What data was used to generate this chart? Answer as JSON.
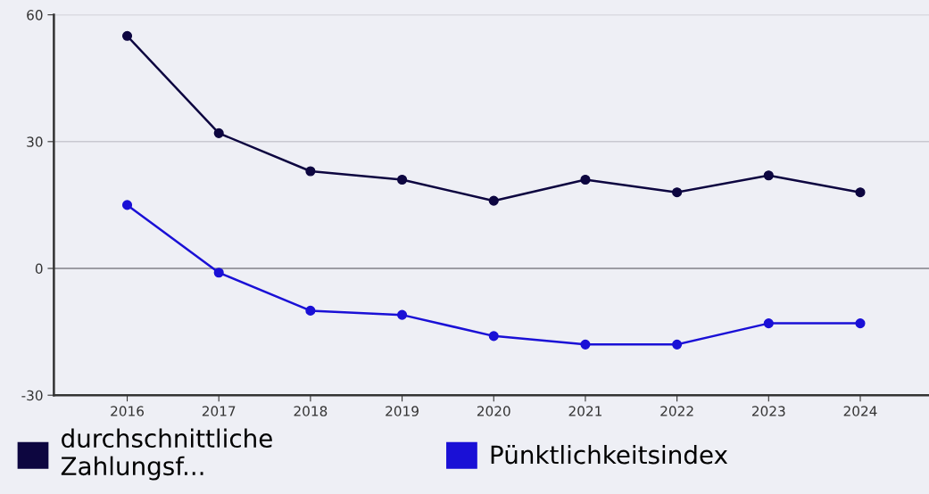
{
  "chart_data": {
    "type": "line",
    "categories": [
      "2016",
      "2017",
      "2018",
      "2019",
      "2020",
      "2021",
      "2022",
      "2023",
      "2024"
    ],
    "series": [
      {
        "name": "durchschnittliche Zahlungsf...",
        "color": "#0d0640",
        "values": [
          55,
          32,
          23,
          21,
          16,
          21,
          18,
          22,
          18
        ]
      },
      {
        "name": "Pünktlichkeitsindex",
        "color": "#1a10d6",
        "values": [
          15,
          -1,
          -10,
          -11,
          -16,
          -18,
          -18,
          -13,
          -13
        ]
      }
    ],
    "ylim": [
      -30,
      60
    ],
    "yticks": [
      -30,
      0,
      30,
      60
    ],
    "grid": "y",
    "legend": "bottom",
    "marker": "circle",
    "line_style": "solid",
    "ref_lines": [
      {
        "axis": "y",
        "value": 0,
        "color": "#8a8a90"
      }
    ]
  }
}
